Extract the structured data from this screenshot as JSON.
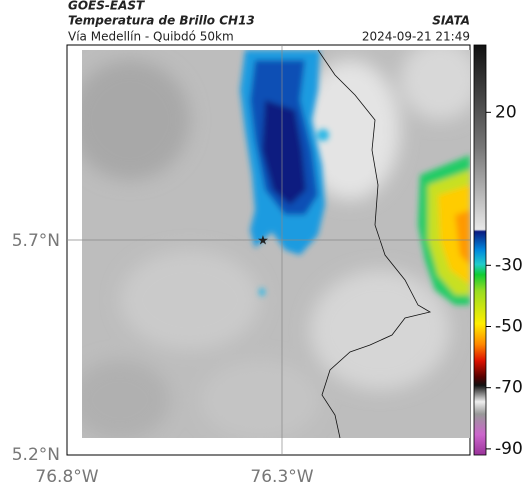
{
  "header": {
    "source": "GOES-EAST",
    "product": "Temperatura de Brillo CH13",
    "org": "SIATA",
    "route": "Vía Medellín - Quibdó 50km",
    "timestamp": "2024-09-21 21:49"
  },
  "map": {
    "lat_labels": [
      "5.7°N",
      "5.2°N"
    ],
    "lon_labels": [
      "76.8°W",
      "76.3°W"
    ]
  },
  "colorbar": {
    "range": [
      -92,
      42
    ],
    "ticks": [
      20,
      -30,
      -50,
      -70,
      -90
    ]
  }
}
